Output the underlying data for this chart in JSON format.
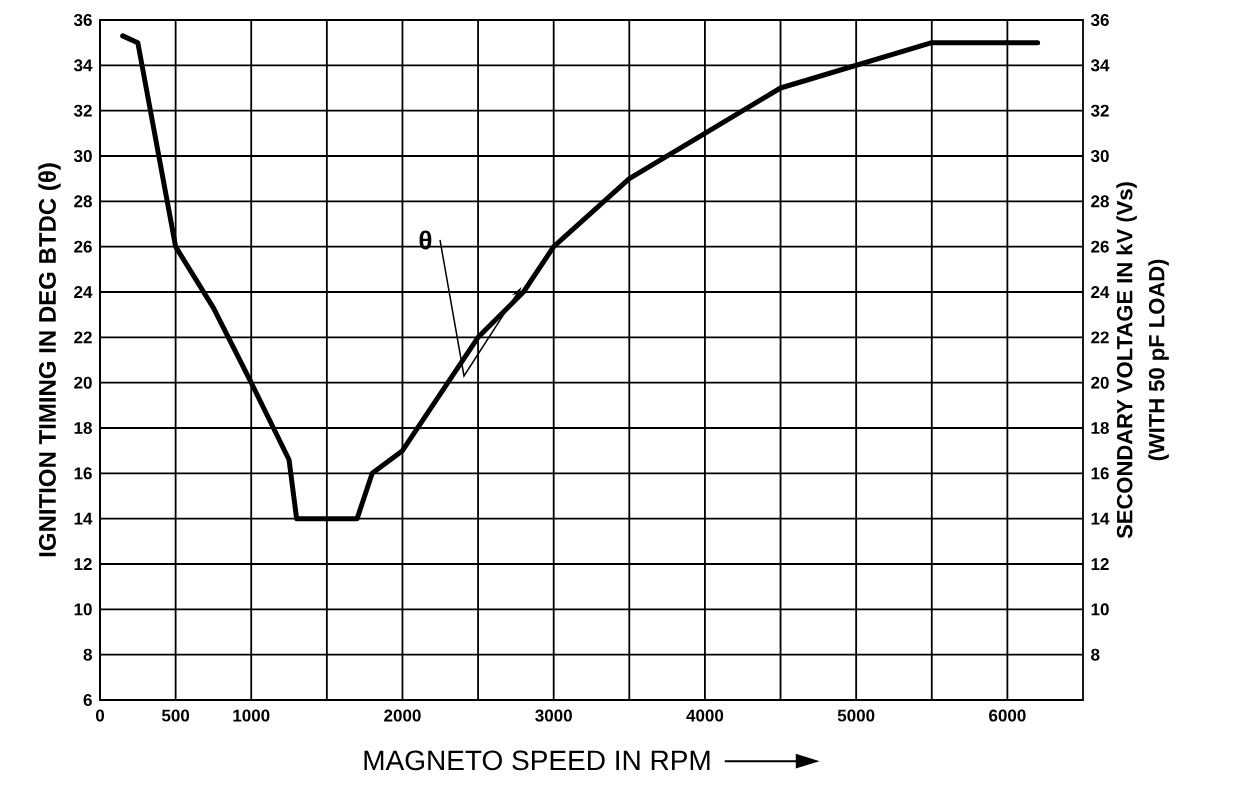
{
  "chart_data": {
    "type": "line",
    "xlabel": "MAGNETO SPEED IN RPM",
    "ylabel": "IGNITION TIMING IN DEG BTDC (θ)",
    "y2label": "SECONDARY VOLTAGE IN kV   (Vs)",
    "annotations": [
      "(WITH 50 pF LOAD)",
      {
        "text": "θ",
        "x": 2800,
        "y": 24
      }
    ],
    "x": [
      150,
      250,
      500,
      750,
      1000,
      1250,
      1300,
      1700,
      1800,
      2000,
      2500,
      2800,
      3000,
      3500,
      4000,
      4500,
      5000,
      5500,
      6200
    ],
    "series": [
      {
        "color": "#000000",
        "values": [
          35.3,
          35,
          26,
          23.3,
          20,
          16.6,
          14,
          14,
          16,
          17,
          22,
          24,
          26,
          29,
          31,
          33,
          34,
          35,
          35
        ]
      }
    ],
    "xlim": [
      0,
      6500
    ],
    "xticks": [
      0,
      500,
      1000,
      {
        "value": 1500,
        "label": null
      },
      2000,
      {
        "value": 2500,
        "label": null
      },
      3000,
      {
        "value": 3500,
        "label": null
      },
      4000,
      {
        "value": 4500,
        "label": null
      },
      5000,
      {
        "value": 5500,
        "label": null
      },
      6000
    ],
    "ylim": [
      6,
      36
    ],
    "yticks": [
      6,
      8,
      10,
      12,
      14,
      16,
      18,
      20,
      22,
      24,
      26,
      28,
      30,
      32,
      34,
      36
    ],
    "y2lim": [
      6,
      36
    ],
    "y2ticks": [
      8,
      10,
      12,
      14,
      16,
      18,
      20,
      22,
      24,
      26,
      28,
      30,
      32,
      34,
      36
    ],
    "grid": true,
    "marker": "none",
    "line_style": "solid"
  }
}
